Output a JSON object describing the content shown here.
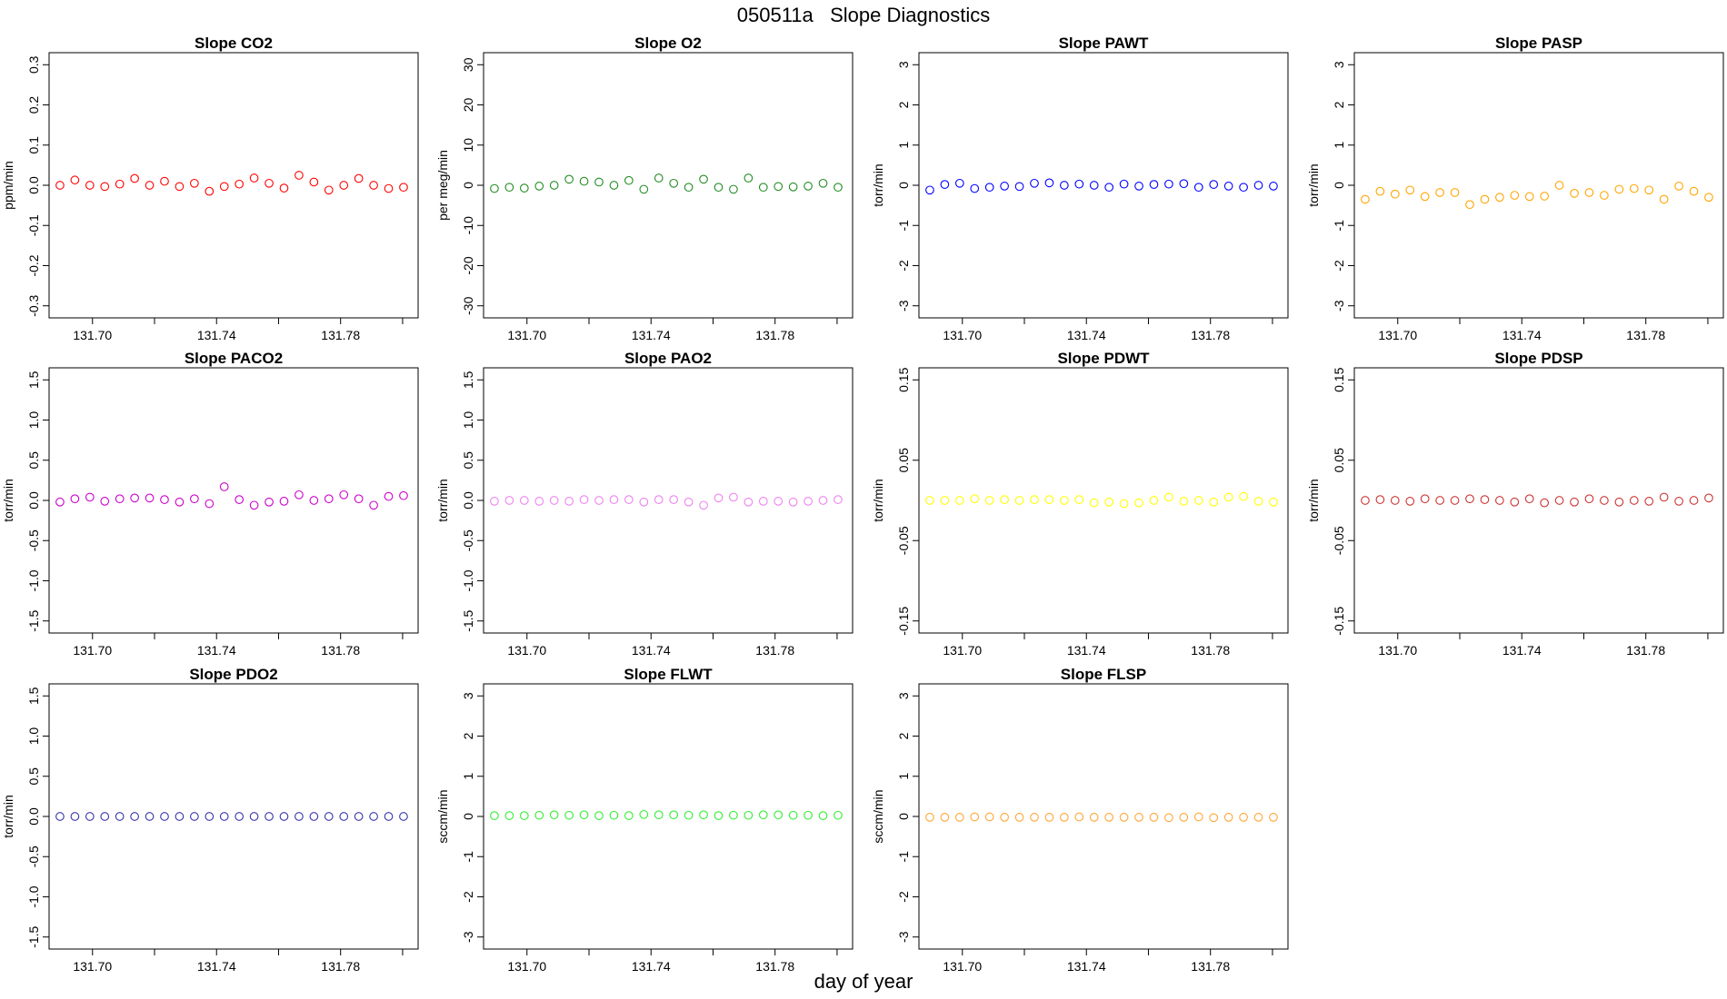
{
  "page": {
    "title": "050511a   Slope Diagnostics",
    "x_caption": "day of year"
  },
  "chart_data": [
    {
      "type": "scatter",
      "title": "Slope CO2",
      "ylabel": "ppm/min",
      "color": "#ff0000",
      "ylim": [
        -0.33,
        0.33
      ],
      "yticks": [
        "-0.3",
        "-0.2",
        "-0.1",
        "0.0",
        "0.1",
        "0.2",
        "0.3"
      ],
      "ytick_values": [
        -0.3,
        -0.2,
        -0.1,
        0,
        0.1,
        0.2,
        0.3
      ],
      "xlim": [
        131.686,
        131.805
      ],
      "xticks": [
        131.7,
        131.72,
        131.74,
        131.76,
        131.78,
        131.8
      ],
      "xtick_labels": [
        "131.70",
        "",
        "131.74",
        "",
        "131.78",
        ""
      ],
      "y": [
        0.0,
        0.013,
        0.0,
        -0.003,
        0.003,
        0.017,
        0.0,
        0.01,
        -0.003,
        0.005,
        -0.015,
        -0.003,
        0.003,
        0.018,
        0.005,
        -0.007,
        0.025,
        0.008,
        -0.012,
        0.0,
        0.017,
        0.0,
        -0.008,
        -0.005
      ]
    },
    {
      "type": "scatter",
      "title": "Slope O2",
      "ylabel": "per meg/min",
      "color": "#228B22",
      "ylim": [
        -33,
        33
      ],
      "yticks": [
        "-30",
        "-20",
        "-10",
        "0",
        "10",
        "20",
        "30"
      ],
      "ytick_values": [
        -30,
        -20,
        -10,
        0,
        10,
        20,
        30
      ],
      "xlim": [
        131.686,
        131.805
      ],
      "xticks": [
        131.7,
        131.72,
        131.74,
        131.76,
        131.78,
        131.8
      ],
      "xtick_labels": [
        "131.70",
        "",
        "131.74",
        "",
        "131.78",
        ""
      ],
      "y": [
        -0.8,
        -0.5,
        -0.7,
        -0.2,
        0.0,
        1.5,
        1.0,
        0.8,
        0.0,
        1.2,
        -1.0,
        1.8,
        0.5,
        -0.5,
        1.5,
        -0.5,
        -1.0,
        1.8,
        -0.5,
        -0.3,
        -0.4,
        -0.2,
        0.5,
        -0.5
      ]
    },
    {
      "type": "scatter",
      "title": "Slope PAWT",
      "ylabel": "torr/min",
      "color": "#0000ff",
      "ylim": [
        -3.3,
        3.3
      ],
      "yticks": [
        "-3",
        "-2",
        "-1",
        "0",
        "1",
        "2",
        "3"
      ],
      "ytick_values": [
        -3,
        -2,
        -1,
        0,
        1,
        2,
        3
      ],
      "xlim": [
        131.686,
        131.805
      ],
      "xticks": [
        131.7,
        131.72,
        131.74,
        131.76,
        131.78,
        131.8
      ],
      "xtick_labels": [
        "131.70",
        "",
        "131.74",
        "",
        "131.78",
        ""
      ],
      "y": [
        -0.12,
        0.02,
        0.05,
        -0.08,
        -0.05,
        -0.02,
        -0.03,
        0.05,
        0.06,
        0.0,
        0.03,
        0.0,
        -0.05,
        0.03,
        -0.02,
        0.02,
        0.03,
        0.04,
        -0.05,
        0.02,
        -0.02,
        -0.05,
        0.0,
        -0.02
      ]
    },
    {
      "type": "scatter",
      "title": "Slope PASP",
      "ylabel": "torr/min",
      "color": "#FFA500",
      "ylim": [
        -3.3,
        3.3
      ],
      "yticks": [
        "-3",
        "-2",
        "-1",
        "0",
        "1",
        "2",
        "3"
      ],
      "ytick_values": [
        -3,
        -2,
        -1,
        0,
        1,
        2,
        3
      ],
      "xlim": [
        131.686,
        131.805
      ],
      "xticks": [
        131.7,
        131.72,
        131.74,
        131.76,
        131.78,
        131.8
      ],
      "xtick_labels": [
        "131.70",
        "",
        "131.74",
        "",
        "131.78",
        ""
      ],
      "y": [
        -0.35,
        -0.15,
        -0.22,
        -0.12,
        -0.28,
        -0.18,
        -0.18,
        -0.48,
        -0.35,
        -0.3,
        -0.25,
        -0.28,
        -0.27,
        0.0,
        -0.2,
        -0.18,
        -0.25,
        -0.1,
        -0.08,
        -0.12,
        -0.35,
        -0.02,
        -0.15,
        -0.3
      ]
    },
    {
      "type": "scatter",
      "title": "Slope PACO2",
      "ylabel": "torr/min",
      "color": "#CC00CC",
      "ylim": [
        -1.65,
        1.65
      ],
      "yticks": [
        "-1.5",
        "-1.0",
        "-0.5",
        "0.0",
        "0.5",
        "1.0",
        "1.5"
      ],
      "ytick_values": [
        -1.5,
        -1.0,
        -0.5,
        0,
        0.5,
        1.0,
        1.5
      ],
      "xlim": [
        131.686,
        131.805
      ],
      "xticks": [
        131.7,
        131.72,
        131.74,
        131.76,
        131.78,
        131.8
      ],
      "xtick_labels": [
        "131.70",
        "",
        "131.74",
        "",
        "131.78",
        ""
      ],
      "y": [
        -0.02,
        0.02,
        0.04,
        -0.01,
        0.02,
        0.03,
        0.03,
        0.01,
        -0.02,
        0.02,
        -0.04,
        0.17,
        0.01,
        -0.06,
        -0.02,
        -0.01,
        0.07,
        0.0,
        0.02,
        0.07,
        0.02,
        -0.06,
        0.05,
        0.06
      ]
    },
    {
      "type": "scatter",
      "title": "Slope PAO2",
      "ylabel": "torr/min",
      "color": "#EE82EE",
      "ylim": [
        -1.65,
        1.65
      ],
      "yticks": [
        "-1.5",
        "-1.0",
        "-0.5",
        "0.0",
        "0.5",
        "1.0",
        "1.5"
      ],
      "ytick_values": [
        -1.5,
        -1.0,
        -0.5,
        0,
        0.5,
        1.0,
        1.5
      ],
      "xlim": [
        131.686,
        131.805
      ],
      "xticks": [
        131.7,
        131.72,
        131.74,
        131.76,
        131.78,
        131.8
      ],
      "xtick_labels": [
        "131.70",
        "",
        "131.74",
        "",
        "131.78",
        ""
      ],
      "y": [
        -0.01,
        0.0,
        0.0,
        -0.01,
        0.0,
        -0.01,
        0.01,
        0.0,
        0.01,
        0.01,
        -0.02,
        0.01,
        0.01,
        -0.02,
        -0.06,
        0.03,
        0.04,
        -0.02,
        -0.01,
        -0.01,
        -0.02,
        -0.01,
        0.0,
        0.01
      ]
    },
    {
      "type": "scatter",
      "title": "Slope PDWT",
      "ylabel": "torr/min",
      "color": "#FFFF00",
      "ylim": [
        -0.165,
        0.165
      ],
      "yticks": [
        "-0.15",
        "-0.05",
        "0.05",
        "0.15"
      ],
      "ytick_values": [
        -0.15,
        -0.05,
        0.05,
        0.15
      ],
      "xlim": [
        131.686,
        131.805
      ],
      "xticks": [
        131.7,
        131.72,
        131.74,
        131.76,
        131.78,
        131.8
      ],
      "xtick_labels": [
        "131.70",
        "",
        "131.74",
        "",
        "131.78",
        ""
      ],
      "y": [
        0.0,
        0.0,
        0.0,
        0.002,
        0.0,
        0.001,
        0.0,
        0.001,
        0.001,
        0.0,
        0.001,
        -0.003,
        -0.002,
        -0.004,
        -0.003,
        0.0,
        0.004,
        -0.001,
        0.0,
        -0.002,
        0.004,
        0.005,
        -0.001,
        -0.002
      ]
    },
    {
      "type": "scatter",
      "title": "Slope PDSP",
      "ylabel": "torr/min",
      "color": "#CD3333",
      "ylim": [
        -0.165,
        0.165
      ],
      "yticks": [
        "-0.15",
        "-0.05",
        "0.05",
        "0.15"
      ],
      "ytick_values": [
        -0.15,
        -0.05,
        0.05,
        0.15
      ],
      "xlim": [
        131.686,
        131.805
      ],
      "xticks": [
        131.7,
        131.72,
        131.74,
        131.76,
        131.78,
        131.8
      ],
      "xtick_labels": [
        "131.70",
        "",
        "131.74",
        "",
        "131.78",
        ""
      ],
      "y": [
        0.0,
        0.001,
        0.0,
        -0.001,
        0.002,
        0.0,
        0.0,
        0.002,
        0.001,
        0.0,
        -0.002,
        0.002,
        -0.003,
        0.0,
        -0.002,
        0.002,
        0.0,
        -0.002,
        0.0,
        -0.001,
        0.004,
        -0.001,
        0.0,
        0.003
      ]
    },
    {
      "type": "scatter",
      "title": "Slope PDO2",
      "ylabel": "torr/min",
      "color": "#3333AA",
      "ylim": [
        -1.65,
        1.65
      ],
      "yticks": [
        "-1.5",
        "-1.0",
        "-0.5",
        "0.0",
        "0.5",
        "1.0",
        "1.5"
      ],
      "ytick_values": [
        -1.5,
        -1.0,
        -0.5,
        0,
        0.5,
        1.0,
        1.5
      ],
      "xlim": [
        131.686,
        131.805
      ],
      "xticks": [
        131.7,
        131.72,
        131.74,
        131.76,
        131.78,
        131.8
      ],
      "xtick_labels": [
        "131.70",
        "",
        "131.74",
        "",
        "131.78",
        ""
      ],
      "y": [
        0,
        0,
        0,
        0,
        0,
        0,
        0,
        0,
        0,
        0,
        0,
        0,
        0,
        0,
        0,
        0,
        0,
        0,
        0,
        0,
        0,
        0,
        0,
        0
      ]
    },
    {
      "type": "scatter",
      "title": "Slope FLWT",
      "ylabel": "sccm/min",
      "color": "#33EE33",
      "ylim": [
        -3.3,
        3.3
      ],
      "yticks": [
        "-3",
        "-2",
        "-1",
        "0",
        "1",
        "2",
        "3"
      ],
      "ytick_values": [
        -3,
        -2,
        -1,
        0,
        1,
        2,
        3
      ],
      "xlim": [
        131.686,
        131.805
      ],
      "xticks": [
        131.7,
        131.72,
        131.74,
        131.76,
        131.78,
        131.8
      ],
      "xtick_labels": [
        "131.70",
        "",
        "131.74",
        "",
        "131.78",
        ""
      ],
      "y": [
        0.02,
        0.02,
        0.02,
        0.03,
        0.04,
        0.03,
        0.04,
        0.02,
        0.03,
        0.02,
        0.05,
        0.04,
        0.04,
        0.03,
        0.04,
        0.02,
        0.03,
        0.03,
        0.04,
        0.04,
        0.03,
        0.03,
        0.02,
        0.03
      ]
    },
    {
      "type": "scatter",
      "title": "Slope FLSP",
      "ylabel": "sccm/min",
      "color": "#FFA533",
      "ylim": [
        -3.3,
        3.3
      ],
      "yticks": [
        "-3",
        "-2",
        "-1",
        "0",
        "1",
        "2",
        "3"
      ],
      "ytick_values": [
        -3,
        -2,
        -1,
        0,
        1,
        2,
        3
      ],
      "xlim": [
        131.686,
        131.805
      ],
      "xticks": [
        131.7,
        131.72,
        131.74,
        131.76,
        131.78,
        131.8
      ],
      "xtick_labels": [
        "131.70",
        "",
        "131.74",
        "",
        "131.78",
        ""
      ],
      "y": [
        -0.02,
        -0.02,
        -0.02,
        -0.01,
        -0.01,
        -0.02,
        -0.02,
        -0.02,
        -0.02,
        -0.02,
        -0.01,
        -0.02,
        -0.02,
        -0.02,
        -0.02,
        -0.02,
        -0.03,
        -0.02,
        -0.01,
        -0.03,
        -0.02,
        -0.02,
        -0.02,
        -0.02
      ]
    }
  ]
}
